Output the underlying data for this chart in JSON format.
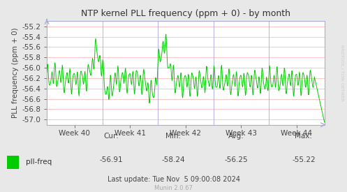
{
  "title": "NTP kernel PLL frequency (ppm + 0) - by month",
  "ylabel": "PLL frequency (ppm + 0)",
  "x_tick_labels": [
    "Week 40",
    "Week 41",
    "Week 42",
    "Week 43",
    "Week 44"
  ],
  "ylim": [
    -57.1,
    -55.1
  ],
  "line_color": "#00cc00",
  "bg_color": "#e8e8e8",
  "plot_bg_color": "#ffffff",
  "grid_color_h": "#ff9999",
  "grid_color_v": "#aaaadd",
  "title_color": "#333333",
  "label_color": "#555555",
  "legend_label": "pll-freq",
  "legend_color": "#00cc00",
  "cur_val": "-56.91",
  "min_val": "-58.24",
  "avg_val": "-56.25",
  "max_val": "-55.22",
  "last_update": "Last update: Tue Nov  5 09:00:08 2024",
  "munin_version": "Munin 2.0.67",
  "watermark": "RRDTOOL / TOBI OETIKER"
}
